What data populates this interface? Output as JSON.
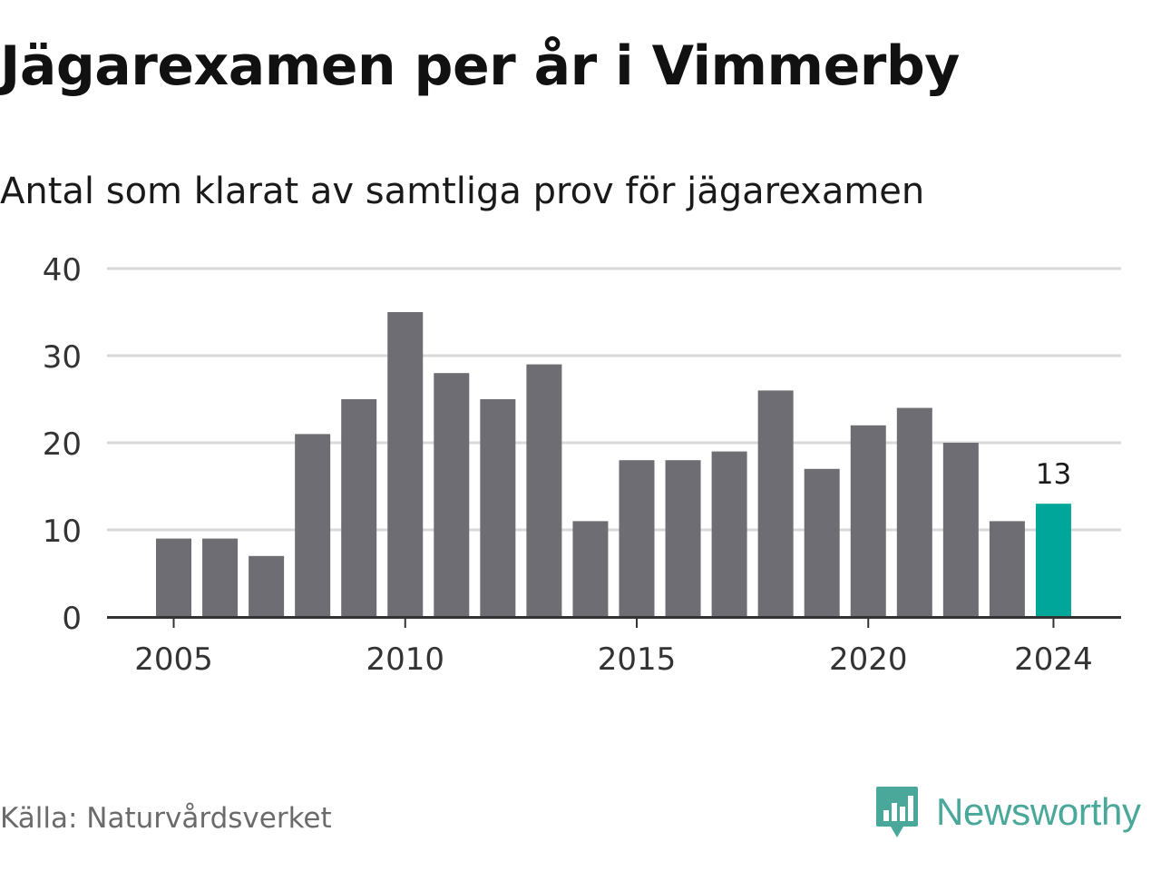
{
  "title": "Jägarexamen per år i Vimmerby",
  "subtitle": "Antal som klarat av samtliga prov för jägarexamen",
  "source": "Källa: Naturvårdsverket",
  "brand": {
    "name": "Newsworthy",
    "icon": "newsworthy-logo-icon",
    "color": "#4aa89a"
  },
  "colors": {
    "bar": "#6e6d74",
    "highlight": "#00a69a",
    "grid": "#d9d9d9",
    "axis": "#333333"
  },
  "chart_data": {
    "type": "bar",
    "categories": [
      "2005",
      "2006",
      "2007",
      "2008",
      "2009",
      "2010",
      "2011",
      "2012",
      "2013",
      "2014",
      "2015",
      "2016",
      "2017",
      "2018",
      "2019",
      "2020",
      "2021",
      "2022",
      "2023",
      "2024"
    ],
    "values": [
      9,
      9,
      7,
      21,
      25,
      35,
      28,
      25,
      29,
      11,
      18,
      18,
      19,
      26,
      17,
      22,
      24,
      20,
      11,
      13
    ],
    "highlight_index": 19,
    "data_labels": [
      {
        "category": "2024",
        "text": "13"
      }
    ],
    "x_tick_labels": [
      "2005",
      "2010",
      "2015",
      "2020",
      "2024"
    ],
    "y_ticks": [
      0,
      10,
      20,
      30,
      40
    ],
    "ylim": [
      0,
      40
    ],
    "grid": true,
    "legend": false
  }
}
